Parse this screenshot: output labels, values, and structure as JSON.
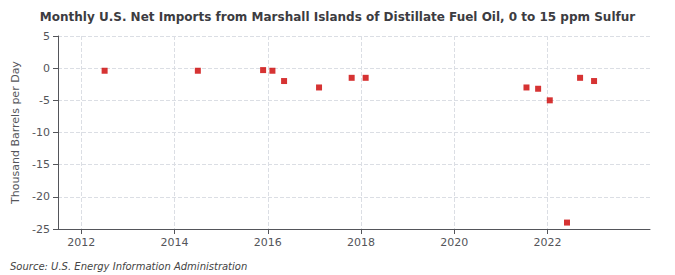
{
  "chart_data": {
    "type": "scatter",
    "title": "Monthly U.S. Net Imports from Marshall Islands of Distillate Fuel Oil, 0 to 15 ppm Sulfur",
    "ylabel": "Thousand Barrels per Day",
    "annotation": "Source: U.S. Energy Information Administration",
    "x": [
      2012.5,
      2014.5,
      2015.9,
      2016.1,
      2016.35,
      2017.1,
      2017.8,
      2018.1,
      2021.55,
      2021.8,
      2022.05,
      2022.42,
      2022.7,
      2023.0
    ],
    "values": [
      -0.4,
      -0.4,
      -0.3,
      -0.4,
      -2.0,
      -3.0,
      -1.5,
      -1.5,
      -3.0,
      -3.2,
      -5.0,
      -24.0,
      -1.5,
      -2.0
    ],
    "color": "#cc0000",
    "marker": "square",
    "xlim": [
      2011.5,
      2024.2
    ],
    "xticks": [
      2012,
      2014,
      2016,
      2018,
      2020,
      2022
    ],
    "ylim": [
      -25,
      5
    ],
    "yticks": [
      5,
      0,
      -5,
      -10,
      -15,
      -20,
      -25
    ],
    "grid": true
  }
}
